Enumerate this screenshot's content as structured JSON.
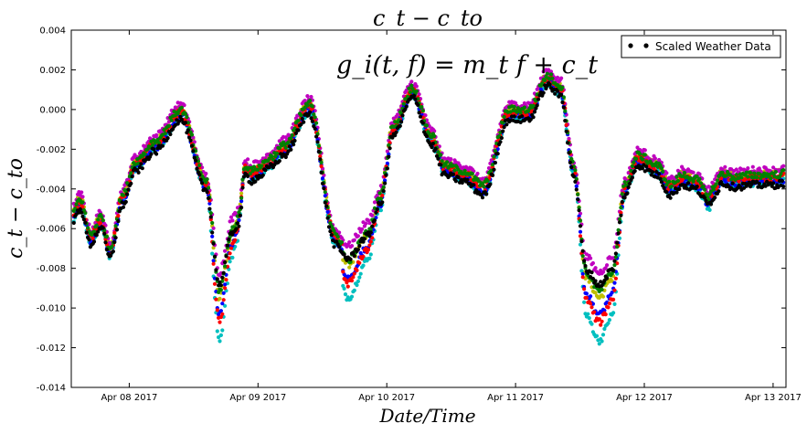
{
  "chart_data": {
    "type": "scatter",
    "title": "c_t − c_to",
    "xlabel": "Date/Time",
    "ylabel": "c_t − c_to",
    "annotation": "g_i(t, f) = m_t f + c_t",
    "ylim": [
      -0.014,
      0.004
    ],
    "xlim": [
      -0.45,
      5.1
    ],
    "x_tick_labels": [
      "Apr 08 2017",
      "Apr 09 2017",
      "Apr 10 2017",
      "Apr 11 2017",
      "Apr 12 2017",
      "Apr 13 2017"
    ],
    "y_tick_labels": [
      "0.004",
      "0.002",
      "0.000",
      "-0.002",
      "-0.004",
      "-0.006",
      "-0.008",
      "-0.010",
      "-0.012",
      "-0.014"
    ],
    "x_unit": "days after Apr 08 2017 00:00",
    "legend": {
      "label": "Scaled Weather Data",
      "placement": "upper right"
    },
    "base_curve": {
      "x": [
        -0.45,
        -0.38,
        -0.3,
        -0.22,
        -0.15,
        -0.05,
        0.05,
        0.2,
        0.4,
        0.6,
        0.7,
        0.8,
        0.85,
        0.9,
        0.95,
        1.0,
        1.1,
        1.2,
        1.4,
        1.6,
        1.7,
        1.85,
        1.95,
        2.05,
        2.2,
        2.35,
        2.45,
        2.6,
        2.75,
        2.95,
        3.1,
        3.25,
        3.35,
        3.45,
        3.55,
        3.65,
        3.75,
        3.85,
        3.95,
        4.1,
        4.2,
        4.3,
        4.4,
        4.5,
        4.55,
        4.6,
        4.7,
        4.85,
        5.0,
        5.1
      ],
      "y": [
        -0.0055,
        -0.0047,
        -0.0065,
        -0.0056,
        -0.0072,
        -0.0045,
        -0.0028,
        -0.0018,
        -0.0002,
        -0.0038,
        -0.0088,
        -0.006,
        -0.0055,
        -0.003,
        -0.0033,
        -0.0031,
        -0.0026,
        -0.002,
        0.0001,
        -0.0065,
        -0.0074,
        -0.0062,
        -0.0045,
        -0.001,
        0.0009,
        -0.0015,
        -0.003,
        -0.0033,
        -0.004,
        -0.0002,
        -0.0002,
        0.0015,
        0.001,
        -0.003,
        -0.008,
        -0.0088,
        -0.008,
        -0.004,
        -0.0025,
        -0.003,
        -0.004,
        -0.0035,
        -0.0037,
        -0.0045,
        -0.004,
        -0.0034,
        -0.0036,
        -0.0035,
        -0.0035,
        -0.0034
      ]
    },
    "dip_windows": [
      [
        0.35,
        0.85
      ],
      [
        1.65,
        2.0
      ],
      [
        2.25,
        2.8
      ],
      [
        3.45,
        3.85
      ],
      [
        4.3,
        4.7
      ]
    ],
    "series": [
      {
        "color": "#bfbf00",
        "offset": 0.00025,
        "dip_scale": 0.35
      },
      {
        "color": "#00bfbf",
        "offset": -0.0002,
        "dip_scale": 1.0
      },
      {
        "color": "#bf00bf",
        "offset": 0.00045,
        "dip_scale": -0.05
      },
      {
        "color": "#0000ff",
        "offset": -0.0001,
        "dip_scale": 0.55
      },
      {
        "color": "#ff0000",
        "offset": 5e-05,
        "dip_scale": 0.75
      },
      {
        "color": "#008000",
        "offset": 0.0002,
        "dip_scale": 0.2
      },
      {
        "color": "#000000",
        "offset": -0.0003,
        "dip_scale": -0.1
      }
    ]
  }
}
